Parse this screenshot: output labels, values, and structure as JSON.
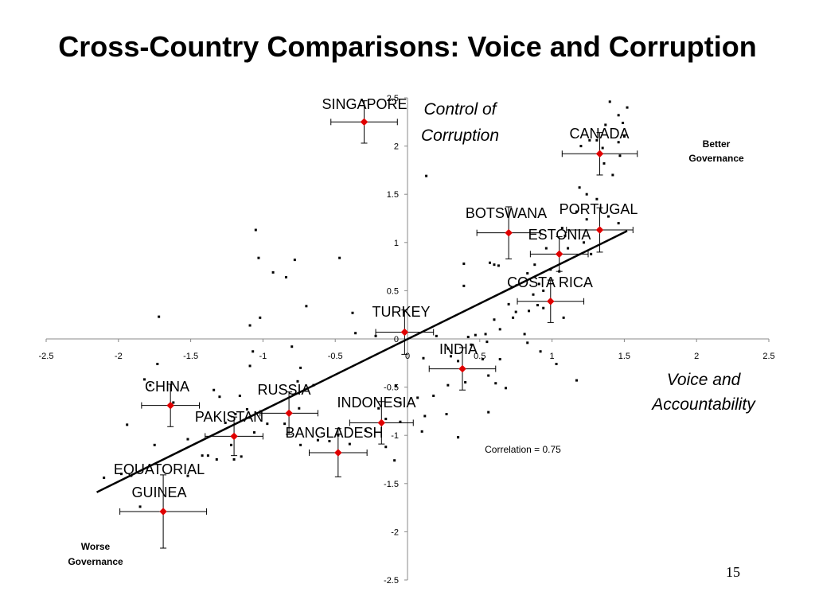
{
  "slide": {
    "title": "Cross-Country Comparisons: Voice and Corruption",
    "page_number": "15"
  },
  "chart_data": {
    "type": "scatter",
    "title": "Cross-Country Comparisons: Voice and Corruption",
    "xlabel_lines": [
      "Voice and",
      "Accountability"
    ],
    "ylabel_lines": [
      "Control of",
      "Corruption"
    ],
    "xlim": [
      -2.5,
      2.5
    ],
    "ylim": [
      -2.5,
      2.5
    ],
    "x_ticks": [
      -2.5,
      -2,
      -1.5,
      -1,
      -0.5,
      0,
      0.5,
      1,
      1.5,
      2,
      2.5
    ],
    "y_ticks": [
      -2.5,
      -2,
      -1.5,
      -1,
      -0.5,
      0,
      0.5,
      1,
      1.5,
      2,
      2.5
    ],
    "x_tick_labels": [
      "-2.5",
      "-2",
      "-1.5",
      "-1",
      "-0.5",
      "0",
      "0.5",
      "1",
      "1.5",
      "2",
      "2.5"
    ],
    "y_tick_labels": [
      "-2.5",
      "-2",
      "-1.5",
      "-1",
      "-0.5",
      "0",
      "0.5",
      "1",
      "1.5",
      "2",
      "2.5"
    ],
    "grid": false,
    "annotations": {
      "top_right": [
        "Better",
        "Governance"
      ],
      "bottom_left": [
        "Worse",
        "Governance"
      ],
      "correlation": "Correlation = 0.75"
    },
    "trend_line": {
      "x": [
        -2.15,
        1.52
      ],
      "y": [
        -1.59,
        1.12
      ]
    },
    "highlighted": [
      {
        "name_lines": [
          "SINGAPORE"
        ],
        "x": -0.3,
        "y": 2.25,
        "x_err": 0.23,
        "y_err": 0.22
      },
      {
        "name_lines": [
          "CANADA"
        ],
        "x": 1.33,
        "y": 1.92,
        "x_err": 0.26,
        "y_err": 0.22
      },
      {
        "name_lines": [
          "PORTUGAL"
        ],
        "x": 1.33,
        "y": 1.13,
        "x_err": 0.23,
        "y_err": 0.23
      },
      {
        "name_lines": [
          "BOTSWANA"
        ],
        "x": 0.7,
        "y": 1.1,
        "x_err": 0.22,
        "y_err": 0.27
      },
      {
        "name_lines": [
          "ESTONIA"
        ],
        "x": 1.05,
        "y": 0.88,
        "x_err": 0.2,
        "y_err": 0.18
      },
      {
        "name_lines": [
          "COSTA RICA"
        ],
        "x": 0.99,
        "y": 0.39,
        "x_err": 0.23,
        "y_err": 0.22
      },
      {
        "name_lines": [
          "TURKEY"
        ],
        "x": -0.02,
        "y": 0.07,
        "x_err": 0.2,
        "y_err": 0.23
      },
      {
        "name_lines": [
          "INDIA"
        ],
        "x": 0.38,
        "y": -0.31,
        "x_err": 0.23,
        "y_err": 0.22
      },
      {
        "name_lines": [
          "CHINA"
        ],
        "x": -1.64,
        "y": -0.69,
        "x_err": 0.2,
        "y_err": 0.22
      },
      {
        "name_lines": [
          "RUSSIA"
        ],
        "x": -0.82,
        "y": -0.77,
        "x_err": 0.2,
        "y_err": 0.22
      },
      {
        "name_lines": [
          "INDONESIA"
        ],
        "x": -0.18,
        "y": -0.87,
        "x_err": 0.22,
        "y_err": 0.22
      },
      {
        "name_lines": [
          "PAKISTAN"
        ],
        "x": -1.2,
        "y": -1.01,
        "x_err": 0.2,
        "y_err": 0.2
      },
      {
        "name_lines": [
          "BANGLADESH"
        ],
        "x": -0.48,
        "y": -1.18,
        "x_err": 0.2,
        "y_err": 0.25
      },
      {
        "name_lines": [
          "EQUATORIAL",
          "GUINEA"
        ],
        "x": -1.69,
        "y": -1.79,
        "x_err": 0.3,
        "y_err": 0.38
      }
    ],
    "points": [
      [
        1.4,
        2.46
      ],
      [
        1.52,
        2.4
      ],
      [
        1.46,
        2.32
      ],
      [
        1.37,
        2.22
      ],
      [
        1.49,
        2.24
      ],
      [
        1.5,
        2.1
      ],
      [
        1.46,
        2.04
      ],
      [
        1.26,
        2.06
      ],
      [
        1.2,
        2.0
      ],
      [
        1.35,
        1.98
      ],
      [
        1.31,
        2.06
      ],
      [
        1.47,
        1.9
      ],
      [
        1.36,
        1.82
      ],
      [
        1.42,
        1.7
      ],
      [
        0.13,
        1.69
      ],
      [
        1.19,
        1.57
      ],
      [
        1.24,
        1.5
      ],
      [
        1.31,
        1.45
      ],
      [
        1.17,
        1.32
      ],
      [
        1.24,
        1.24
      ],
      [
        1.39,
        1.27
      ],
      [
        1.46,
        1.2
      ],
      [
        1.07,
        1.15
      ],
      [
        1.22,
        1.0
      ],
      [
        1.09,
        1.07
      ],
      [
        0.96,
        0.94
      ],
      [
        1.11,
        0.94
      ],
      [
        1.27,
        0.88
      ],
      [
        0.88,
        0.77
      ],
      [
        0.99,
        0.72
      ],
      [
        1.05,
        0.7
      ],
      [
        0.57,
        0.79
      ],
      [
        0.6,
        0.77
      ],
      [
        0.63,
        0.76
      ],
      [
        0.39,
        0.78
      ],
      [
        0.39,
        0.55
      ],
      [
        0.83,
        0.68
      ],
      [
        0.91,
        0.57
      ],
      [
        0.94,
        0.5
      ],
      [
        0.87,
        0.46
      ],
      [
        0.7,
        0.36
      ],
      [
        0.9,
        0.35
      ],
      [
        0.94,
        0.32
      ],
      [
        0.84,
        0.29
      ],
      [
        0.75,
        0.28
      ],
      [
        0.73,
        0.22
      ],
      [
        1.08,
        0.22
      ],
      [
        0.6,
        0.2
      ],
      [
        0.64,
        0.1
      ],
      [
        0.81,
        0.05
      ],
      [
        0.54,
        0.05
      ],
      [
        0.47,
        0.04
      ],
      [
        0.42,
        0.02
      ],
      [
        0.55,
        -0.03
      ],
      [
        0.44,
        -0.06
      ],
      [
        0.2,
        0.03
      ],
      [
        0.28,
        -0.1
      ],
      [
        0.11,
        -0.2
      ],
      [
        0.3,
        -0.18
      ],
      [
        0.35,
        -0.23
      ],
      [
        0.52,
        -0.21
      ],
      [
        0.56,
        -0.38
      ],
      [
        0.61,
        -0.46
      ],
      [
        0.68,
        -0.51
      ],
      [
        0.56,
        -0.76
      ],
      [
        0.4,
        -0.45
      ],
      [
        0.28,
        -0.48
      ],
      [
        0.18,
        -0.59
      ],
      [
        -0.08,
        -0.49
      ],
      [
        0.07,
        -0.61
      ],
      [
        -0.05,
        -0.66
      ],
      [
        0.12,
        -0.8
      ],
      [
        -0.2,
        -0.72
      ],
      [
        -0.05,
        -0.86
      ],
      [
        -0.15,
        -0.83
      ],
      [
        0.1,
        -0.96
      ],
      [
        -0.29,
        -0.95
      ],
      [
        0.35,
        -1.02
      ],
      [
        -0.15,
        -1.12
      ],
      [
        -0.09,
        -1.26
      ],
      [
        -0.4,
        -1.09
      ],
      [
        -0.48,
        -1.0
      ],
      [
        -0.54,
        -1.06
      ],
      [
        -0.62,
        -1.05
      ],
      [
        -0.74,
        -1.1
      ],
      [
        -0.75,
        -0.72
      ],
      [
        -0.85,
        -0.88
      ],
      [
        -0.97,
        -0.88
      ],
      [
        -1.06,
        -0.97
      ],
      [
        -1.11,
        -0.73
      ],
      [
        -1.26,
        -0.87
      ],
      [
        -1.3,
        -0.6
      ],
      [
        -1.16,
        -0.59
      ],
      [
        -1.19,
        -0.78
      ],
      [
        -1.15,
        -1.22
      ],
      [
        -1.2,
        -1.25
      ],
      [
        -1.32,
        -1.25
      ],
      [
        -1.38,
        -1.21
      ],
      [
        -1.52,
        -1.42
      ],
      [
        -1.42,
        -1.21
      ],
      [
        -1.52,
        -1.04
      ],
      [
        -1.82,
        -0.42
      ],
      [
        -1.62,
        -0.66
      ],
      [
        -1.94,
        -0.89
      ],
      [
        -1.75,
        -1.1
      ],
      [
        -1.98,
        -1.4
      ],
      [
        -2.1,
        -1.44
      ],
      [
        -1.85,
        -1.74
      ],
      [
        -1.73,
        -0.26
      ],
      [
        -1.78,
        -0.48
      ],
      [
        -1.07,
        -0.13
      ],
      [
        -1.34,
        -0.53
      ],
      [
        -1.22,
        -1.1
      ],
      [
        -1.05,
        1.13
      ],
      [
        -1.03,
        0.84
      ],
      [
        -1.09,
        0.14
      ],
      [
        -1.02,
        0.22
      ],
      [
        -0.78,
        0.82
      ],
      [
        -0.93,
        0.69
      ],
      [
        -0.84,
        0.64
      ],
      [
        -0.7,
        0.34
      ],
      [
        -0.47,
        0.84
      ],
      [
        -0.38,
        0.27
      ],
      [
        -0.74,
        -0.3
      ],
      [
        -0.76,
        -0.44
      ],
      [
        -0.8,
        -0.08
      ],
      [
        -0.36,
        0.06
      ],
      [
        -0.22,
        0.03
      ],
      [
        -0.65,
        -0.48
      ],
      [
        -1.09,
        -0.28
      ],
      [
        -1.72,
        0.23
      ],
      [
        0.35,
        -1.02
      ],
      [
        0.27,
        -0.78
      ],
      [
        1.17,
        -0.43
      ],
      [
        1.03,
        -0.26
      ],
      [
        0.92,
        -0.13
      ],
      [
        0.83,
        -0.04
      ],
      [
        0.64,
        -0.21
      ]
    ]
  }
}
